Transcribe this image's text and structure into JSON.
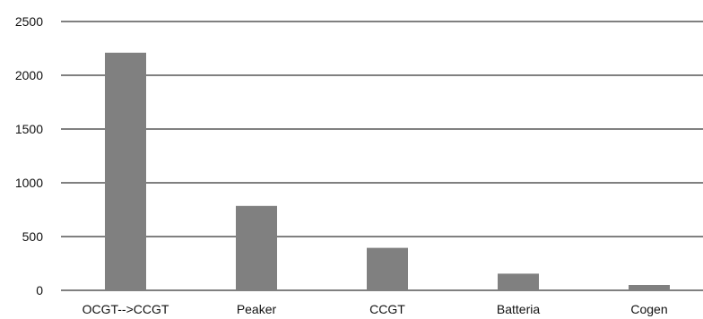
{
  "chart_data": {
    "type": "bar",
    "title": "",
    "xlabel": "",
    "ylabel": "",
    "categories": [
      "OCGT-->CCGT",
      "Peaker",
      "CCGT",
      "Batteria",
      "Cogen"
    ],
    "values": [
      2210,
      785,
      395,
      155,
      50
    ],
    "ylim": [
      0,
      2500
    ],
    "yticks": [
      0,
      500,
      1000,
      1500,
      2000,
      2500
    ],
    "grid": "horizontal",
    "legend": "none",
    "bar_color": "#808080",
    "grid_color": "#000000"
  }
}
